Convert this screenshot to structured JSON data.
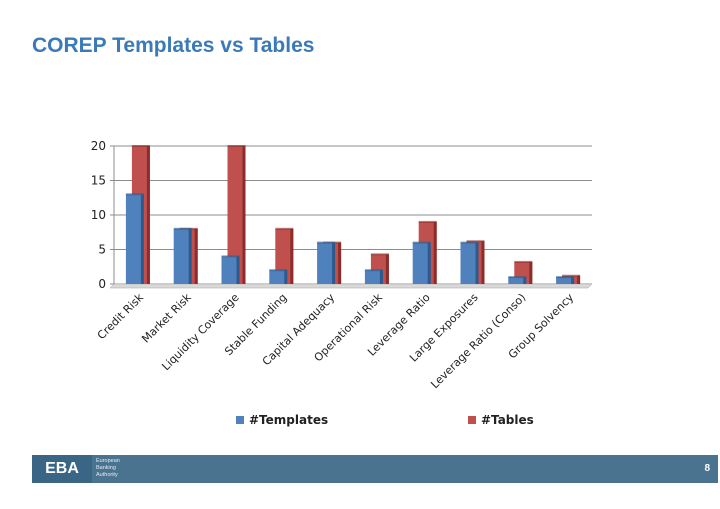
{
  "slide": {
    "title": "COREP Templates vs Tables",
    "page_number": "8"
  },
  "footer": {
    "logo_text": "EBA",
    "logo_subtext": [
      "European",
      "Banking",
      "Authority"
    ]
  },
  "chart_data": {
    "type": "bar",
    "categories": [
      "Credit Risk",
      "Market Risk",
      "Liquidity Coverage",
      "Stable Funding",
      "Capital Adequacy",
      "Operational Risk",
      "Leverage Ratio",
      "Large Exposures",
      "Leverage Ratio (Conso)",
      "Group Solvency"
    ],
    "series": [
      {
        "name": "#Templates",
        "values": [
          13,
          8,
          4,
          2,
          6,
          2,
          6,
          6,
          1,
          1
        ],
        "color": "#4f81bd"
      },
      {
        "name": "#Tables",
        "values": [
          20,
          8,
          20,
          8,
          6,
          4.3,
          9,
          6.2,
          3.2,
          1.2
        ],
        "color": "#c0504d"
      }
    ],
    "ylim": [
      0,
      20
    ],
    "yticks": [
      0,
      5,
      10,
      15,
      20
    ],
    "grid": true,
    "legend": "bottom"
  }
}
